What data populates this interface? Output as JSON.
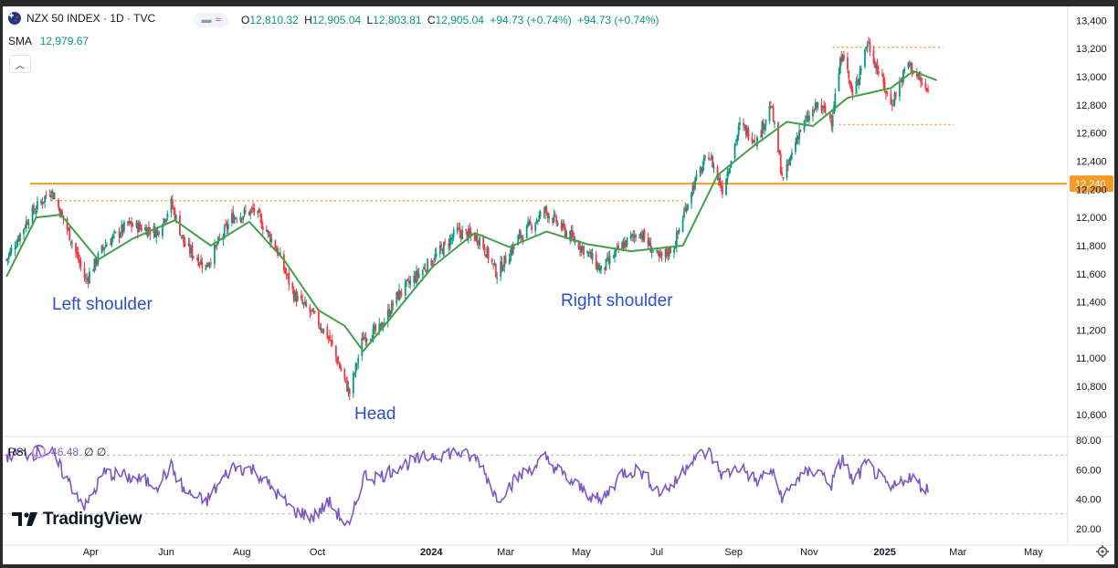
{
  "header": {
    "symbol": "NZX 50 INDEX · 1D · TVC",
    "ohlc": {
      "o_label": "O",
      "o": "12,810.32",
      "h_label": "H",
      "h": "12,905.04",
      "l_label": "L",
      "l": "12,803.81",
      "c_label": "C",
      "c": "12,905.04",
      "change": "+94.73 (+0.74%)",
      "change2": "+94.73 (+0.74%)"
    },
    "sma_label": "SMA",
    "sma_value": "12,979.67",
    "rsi_label": "RSI",
    "rsi_value": "46.48",
    "rsi_extra": "∅ ∅",
    "collapse_icon": "chevron-up-icon"
  },
  "annotations": {
    "left_shoulder": "Left shoulder",
    "head": "Head",
    "right_shoulder": "Right shoulder"
  },
  "branding": {
    "logo_mark": "17",
    "logo_text": "TradingView"
  },
  "colors": {
    "up": "#089981",
    "down": "#f23645",
    "sma": "#43a047",
    "rsi": "#7e57c2",
    "level": "#f59a23",
    "annotation": "#2b50c8"
  },
  "chart_data": [
    {
      "type": "candlestick",
      "title": "NZX 50 INDEX · 1D · TVC",
      "y_ticks": [
        "10,600",
        "10,800",
        "11,000",
        "11,200",
        "11,400",
        "11,600",
        "11,800",
        "12,000",
        "12,200",
        "12,400",
        "12,600",
        "12,800",
        "13,000",
        "13,200",
        "13,400"
      ],
      "ylim": [
        10450,
        13500
      ],
      "x_ticks": [
        "Apr",
        "Jun",
        "Aug",
        "Oct",
        "2024",
        "Mar",
        "May",
        "Jul",
        "Sep",
        "Nov",
        "2025",
        "Mar",
        "May"
      ],
      "last_price_label": "12,240",
      "neckline_level": 12240,
      "dotted_levels": [
        {
          "y": 12120,
          "from": "2023-02-28",
          "to": "2024-07-22"
        },
        {
          "y": 13210,
          "from": "2024-11-20",
          "to": "2025-02-17"
        },
        {
          "y": 12660,
          "from": "2024-11-25",
          "to": "2025-02-26"
        }
      ],
      "path_points": [
        [
          "2023-01-23",
          11700
        ],
        [
          "2023-02-10",
          12000
        ],
        [
          "2023-02-28",
          12200
        ],
        [
          "2023-03-14",
          11900
        ],
        [
          "2023-03-28",
          11550
        ],
        [
          "2023-04-12",
          11800
        ],
        [
          "2023-05-01",
          11950
        ],
        [
          "2023-05-25",
          11900
        ],
        [
          "2023-06-05",
          12100
        ],
        [
          "2023-06-16",
          11800
        ],
        [
          "2023-07-03",
          11650
        ],
        [
          "2023-07-24",
          12000
        ],
        [
          "2023-08-11",
          12050
        ],
        [
          "2023-08-28",
          11800
        ],
        [
          "2023-09-12",
          11450
        ],
        [
          "2023-09-28",
          11300
        ],
        [
          "2023-10-10",
          11150
        ],
        [
          "2023-10-27",
          10750
        ],
        [
          "2023-11-07",
          11150
        ],
        [
          "2023-11-20",
          11200
        ],
        [
          "2023-12-05",
          11450
        ],
        [
          "2024-01-02",
          11700
        ],
        [
          "2024-01-22",
          11900
        ],
        [
          "2024-02-09",
          11850
        ],
        [
          "2024-02-23",
          11600
        ],
        [
          "2024-03-11",
          11850
        ],
        [
          "2024-04-02",
          12050
        ],
        [
          "2024-04-18",
          11900
        ],
        [
          "2024-05-06",
          11750
        ],
        [
          "2024-05-17",
          11620
        ],
        [
          "2024-06-03",
          11800
        ],
        [
          "2024-06-17",
          11900
        ],
        [
          "2024-07-03",
          11700
        ],
        [
          "2024-07-15",
          11800
        ],
        [
          "2024-07-29",
          12200
        ],
        [
          "2024-08-12",
          12450
        ],
        [
          "2024-08-23",
          12200
        ],
        [
          "2024-09-06",
          12650
        ],
        [
          "2024-09-20",
          12550
        ],
        [
          "2024-10-01",
          12800
        ],
        [
          "2024-10-11",
          12250
        ],
        [
          "2024-10-23",
          12600
        ],
        [
          "2024-11-08",
          12800
        ],
        [
          "2024-11-19",
          12700
        ],
        [
          "2024-11-28",
          13200
        ],
        [
          "2024-12-06",
          12850
        ],
        [
          "2024-12-18",
          13250
        ],
        [
          "2025-01-06",
          12800
        ],
        [
          "2025-01-20",
          13100
        ],
        [
          "2025-02-05",
          12880
        ]
      ],
      "sma_points": [
        [
          "2023-01-23",
          11580
        ],
        [
          "2023-02-16",
          12000
        ],
        [
          "2023-03-08",
          12020
        ],
        [
          "2023-04-07",
          11700
        ],
        [
          "2023-05-05",
          11850
        ],
        [
          "2023-06-08",
          11980
        ],
        [
          "2023-07-07",
          11800
        ],
        [
          "2023-08-07",
          11970
        ],
        [
          "2023-09-04",
          11700
        ],
        [
          "2023-10-02",
          11340
        ],
        [
          "2023-10-23",
          11230
        ],
        [
          "2023-11-07",
          11050
        ],
        [
          "2023-11-24",
          11230
        ],
        [
          "2024-01-02",
          11650
        ],
        [
          "2024-02-05",
          11890
        ],
        [
          "2024-03-04",
          11790
        ],
        [
          "2024-04-03",
          11900
        ],
        [
          "2024-05-06",
          11810
        ],
        [
          "2024-06-10",
          11760
        ],
        [
          "2024-07-22",
          11800
        ],
        [
          "2024-08-19",
          12300
        ],
        [
          "2024-09-16",
          12500
        ],
        [
          "2024-10-14",
          12680
        ],
        [
          "2024-11-04",
          12650
        ],
        [
          "2024-12-02",
          12850
        ],
        [
          "2025-01-06",
          12920
        ],
        [
          "2025-01-24",
          13040
        ],
        [
          "2025-02-12",
          12975
        ]
      ],
      "rsi_points": [
        [
          "2023-01-23",
          70
        ],
        [
          "2023-02-28",
          72
        ],
        [
          "2023-03-14",
          52
        ],
        [
          "2023-03-28",
          35
        ],
        [
          "2023-04-12",
          58
        ],
        [
          "2023-05-01",
          55
        ],
        [
          "2023-05-25",
          50
        ],
        [
          "2023-06-05",
          62
        ],
        [
          "2023-06-16",
          45
        ],
        [
          "2023-07-03",
          38
        ],
        [
          "2023-07-24",
          62
        ],
        [
          "2023-08-11",
          60
        ],
        [
          "2023-08-28",
          45
        ],
        [
          "2023-09-12",
          32
        ],
        [
          "2023-09-28",
          28
        ],
        [
          "2023-10-10",
          38
        ],
        [
          "2023-10-27",
          20
        ],
        [
          "2023-11-07",
          56
        ],
        [
          "2023-11-20",
          55
        ],
        [
          "2023-12-05",
          62
        ],
        [
          "2024-01-02",
          70
        ],
        [
          "2024-01-22",
          72
        ],
        [
          "2024-02-09",
          66
        ],
        [
          "2024-02-23",
          40
        ],
        [
          "2024-03-11",
          55
        ],
        [
          "2024-04-02",
          68
        ],
        [
          "2024-04-18",
          55
        ],
        [
          "2024-05-06",
          44
        ],
        [
          "2024-05-17",
          38
        ],
        [
          "2024-06-03",
          58
        ],
        [
          "2024-06-17",
          60
        ],
        [
          "2024-07-03",
          45
        ],
        [
          "2024-07-15",
          50
        ],
        [
          "2024-07-29",
          68
        ],
        [
          "2024-08-12",
          72
        ],
        [
          "2024-08-23",
          56
        ],
        [
          "2024-09-06",
          62
        ],
        [
          "2024-09-20",
          52
        ],
        [
          "2024-10-01",
          60
        ],
        [
          "2024-10-11",
          40
        ],
        [
          "2024-10-23",
          55
        ],
        [
          "2024-11-08",
          60
        ],
        [
          "2024-11-19",
          50
        ],
        [
          "2024-11-28",
          68
        ],
        [
          "2024-12-06",
          52
        ],
        [
          "2024-12-18",
          64
        ],
        [
          "2025-01-06",
          46
        ],
        [
          "2025-01-20",
          56
        ],
        [
          "2025-02-05",
          46
        ]
      ],
      "x_start": "2023-01-20",
      "x_end": "2025-05-28"
    },
    {
      "type": "line",
      "title": "RSI",
      "y_ticks": [
        "20.00",
        "40.00",
        "60.00",
        "80.00"
      ],
      "ylim": [
        10,
        82
      ],
      "bands": [
        70,
        30
      ]
    }
  ]
}
